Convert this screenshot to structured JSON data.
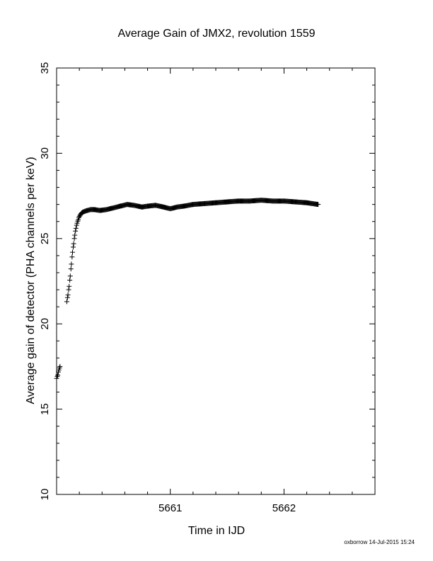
{
  "chart_data": {
    "type": "scatter",
    "title": "Average Gain of JMX2, revolution 1559",
    "xlabel": "Time in IJD",
    "ylabel": "Average gain of detector (PHA channels per keV)",
    "xlim": [
      5660.0,
      5662.8
    ],
    "ylim": [
      10,
      35
    ],
    "xticks": [
      5661,
      5662
    ],
    "yticks": [
      10,
      15,
      20,
      25,
      30,
      35
    ],
    "grid": false,
    "marker": "plus",
    "series": [
      {
        "x": [
          5660.0,
          5660.01,
          5660.02,
          5660.03,
          5660.09,
          5660.1,
          5660.11,
          5660.12,
          5660.13,
          5660.14,
          5660.15,
          5660.16,
          5660.17,
          5660.18,
          5660.19,
          5660.2,
          5660.21,
          5660.22,
          5660.23,
          5660.25,
          5660.27,
          5660.3,
          5660.33,
          5660.38,
          5660.44,
          5660.5,
          5660.56,
          5660.62,
          5660.68,
          5660.75,
          5660.8,
          5660.87,
          5660.94,
          5661.0,
          5661.06,
          5661.12,
          5661.2,
          5661.3,
          5661.4,
          5661.5,
          5661.6,
          5661.7,
          5661.8,
          5661.9,
          5662.0,
          5662.1,
          5662.2,
          5662.3
        ],
        "y": [
          16.8,
          17.0,
          17.3,
          17.5,
          21.3,
          21.7,
          22.2,
          22.8,
          23.5,
          24.2,
          24.7,
          25.2,
          25.6,
          25.9,
          26.1,
          26.3,
          26.4,
          26.5,
          26.55,
          26.6,
          26.65,
          26.7,
          26.7,
          26.65,
          26.7,
          26.8,
          26.9,
          27.0,
          26.95,
          26.85,
          26.9,
          26.95,
          26.85,
          26.75,
          26.85,
          26.9,
          27.0,
          27.05,
          27.1,
          27.15,
          27.2,
          27.2,
          27.25,
          27.2,
          27.2,
          27.15,
          27.1,
          27.0
        ]
      }
    ]
  },
  "footer": {
    "stamp": "oxborrow 14-Jul-2015 15:24"
  }
}
